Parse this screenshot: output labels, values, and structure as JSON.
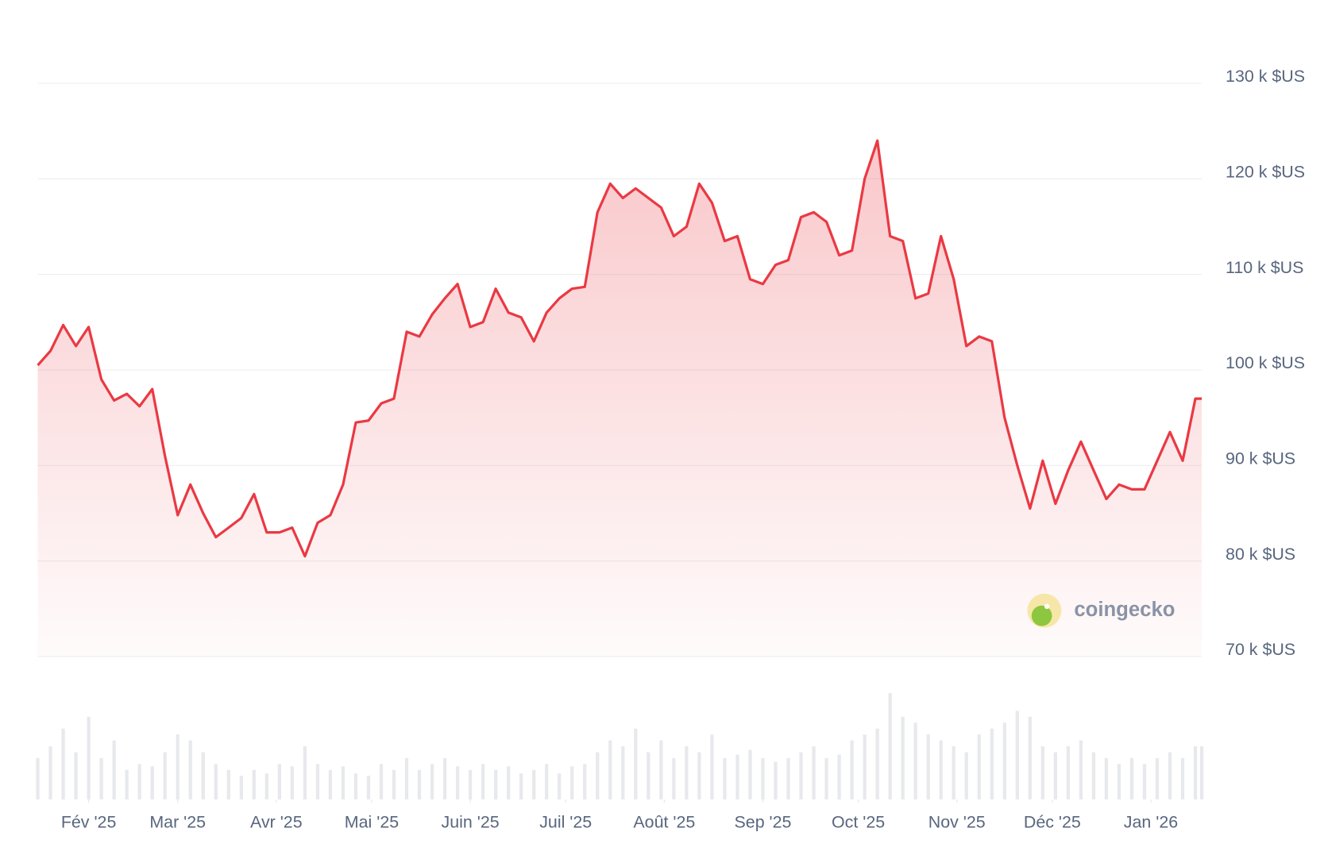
{
  "chart_data": {
    "type": "line",
    "x": [
      0,
      4,
      8,
      12,
      16,
      20,
      24,
      28,
      32,
      36,
      40,
      44,
      48,
      52,
      56,
      60,
      64,
      68,
      72,
      76,
      80,
      84,
      88,
      92,
      96,
      100,
      104,
      108,
      112,
      116,
      120,
      124,
      128,
      132,
      136,
      140,
      144,
      148,
      152,
      156,
      160,
      164,
      168,
      172,
      176,
      180,
      184,
      188,
      192,
      196,
      200,
      204,
      208,
      212,
      216,
      220,
      224,
      228,
      232,
      236,
      240,
      244,
      248,
      252,
      256,
      260,
      264,
      268,
      272,
      276,
      280,
      284,
      288,
      292,
      296,
      300,
      304,
      308,
      312,
      316,
      320,
      324,
      328,
      332,
      336,
      340,
      344,
      348,
      352,
      356,
      360,
      364,
      366
    ],
    "series": [
      {
        "color": "#ea3943",
        "values": [
          100500,
          102000,
          104700,
          102500,
          104500,
          99000,
          96800,
          97500,
          96200,
          98000,
          91000,
          84800,
          88000,
          85000,
          82500,
          83500,
          84500,
          87000,
          83000,
          83000,
          83500,
          80500,
          84000,
          84800,
          88000,
          94500,
          94700,
          96500,
          97000,
          104000,
          103500,
          105800,
          107500,
          109000,
          104500,
          105000,
          108500,
          106000,
          105500,
          103000,
          106000,
          107500,
          108500,
          108700,
          116500,
          119500,
          118000,
          119000,
          118000,
          117000,
          114000,
          115000,
          119500,
          117500,
          113500,
          114000,
          109500,
          109000,
          111000,
          111500,
          116000,
          116500,
          115500,
          112000,
          112500,
          120000,
          124000,
          114000,
          113500,
          107500,
          108000,
          114000,
          109500,
          102500,
          103500,
          103000,
          95000,
          90000,
          85500,
          90500,
          86000,
          89500,
          92500,
          89500,
          86500,
          88000,
          87500,
          87500,
          90500,
          93500,
          90500,
          97000,
          97000
        ]
      }
    ],
    "volume_values": [
      35,
      45,
      60,
      40,
      70,
      35,
      50,
      25,
      30,
      28,
      40,
      55,
      50,
      40,
      30,
      25,
      20,
      25,
      22,
      30,
      28,
      45,
      30,
      25,
      28,
      22,
      20,
      30,
      25,
      35,
      25,
      30,
      35,
      28,
      25,
      30,
      25,
      28,
      22,
      25,
      30,
      22,
      28,
      30,
      40,
      50,
      45,
      60,
      40,
      50,
      35,
      45,
      40,
      55,
      35,
      38,
      42,
      35,
      32,
      35,
      40,
      45,
      35,
      38,
      50,
      55,
      60,
      90,
      70,
      65,
      55,
      50,
      45,
      40,
      55,
      60,
      65,
      75,
      70,
      45,
      40,
      45,
      50,
      40,
      35,
      30,
      35,
      30,
      35,
      40,
      35,
      45,
      45
    ],
    "xlim": [
      0,
      366
    ],
    "xticks": [
      {
        "value": 16,
        "label": "Fév '25"
      },
      {
        "value": 44,
        "label": "Mar '25"
      },
      {
        "value": 75,
        "label": "Avr '25"
      },
      {
        "value": 105,
        "label": "Mai '25"
      },
      {
        "value": 136,
        "label": "Juin '25"
      },
      {
        "value": 166,
        "label": "Juil '25"
      },
      {
        "value": 197,
        "label": "Août '25"
      },
      {
        "value": 228,
        "label": "Sep '25"
      },
      {
        "value": 258,
        "label": "Oct '25"
      },
      {
        "value": 289,
        "label": "Nov '25"
      },
      {
        "value": 319,
        "label": "Déc '25"
      },
      {
        "value": 350,
        "label": "Jan '26"
      }
    ],
    "ylim": [
      70000,
      130000
    ],
    "yticks": [
      {
        "value": 70000,
        "label": "70 k $US"
      },
      {
        "value": 80000,
        "label": "80 k $US"
      },
      {
        "value": 90000,
        "label": "90 k $US"
      },
      {
        "value": 100000,
        "label": "100 k $US"
      },
      {
        "value": 110000,
        "label": "110 k $US"
      },
      {
        "value": 120000,
        "label": "120 k $US"
      },
      {
        "value": 130000,
        "label": "130 k $US"
      }
    ],
    "grid": true,
    "watermark": "coingecko"
  }
}
